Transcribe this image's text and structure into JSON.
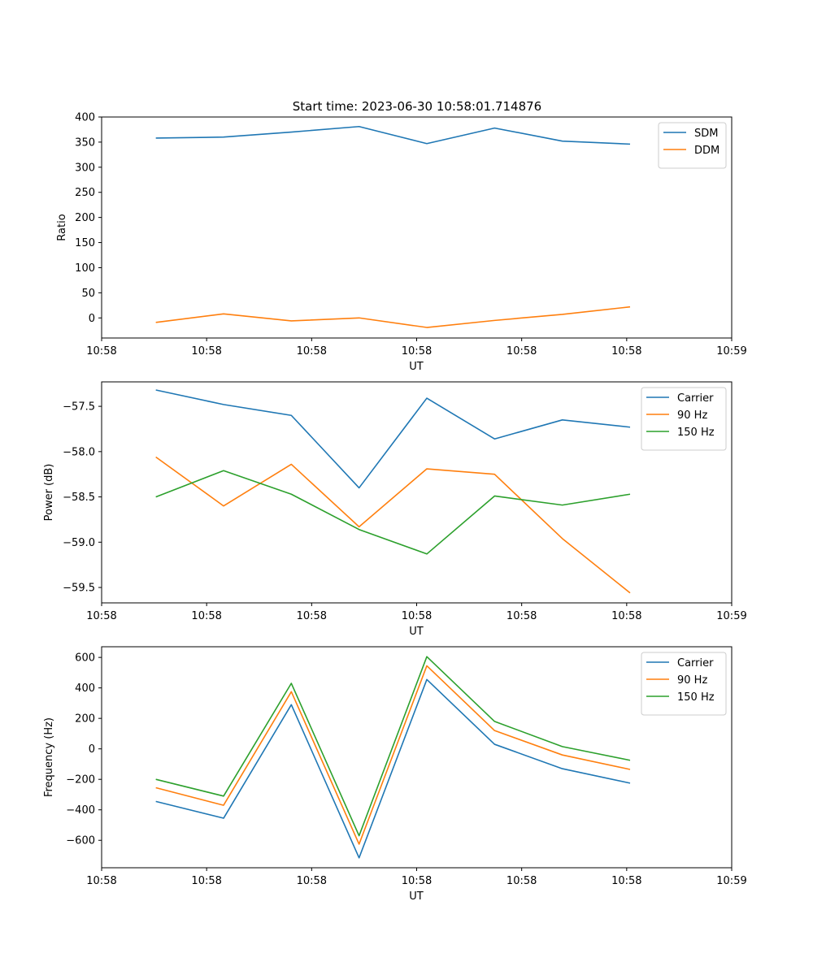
{
  "figure": {
    "title": "Start time: 2023-06-30 10:58:01.714876"
  },
  "chart_data": [
    {
      "type": "line",
      "title": "Start time: 2023-06-30 10:58:01.714876",
      "xlabel": "UT",
      "ylabel": "Ratio",
      "xlim": [
        0,
        9.3
      ],
      "x_ticks": [
        0,
        1.55,
        3.1,
        4.65,
        6.2,
        7.75,
        9.3
      ],
      "x_tick_labels": [
        "10:58",
        "10:58",
        "10:58",
        "10:58",
        "10:58",
        "10:58",
        "10:59"
      ],
      "ylim": [
        -40,
        400
      ],
      "y_ticks": [
        0,
        50,
        100,
        150,
        200,
        250,
        300,
        350,
        400
      ],
      "y_tick_labels": [
        "0",
        "50",
        "100",
        "150",
        "200",
        "250",
        "300",
        "350",
        "400"
      ],
      "x": [
        0.8,
        1.8,
        2.8,
        3.8,
        4.8,
        5.8,
        6.8,
        7.8
      ],
      "series": [
        {
          "name": "SDM",
          "color": "#1f77b4",
          "values": [
            358,
            360,
            370,
            381,
            347,
            378,
            352,
            346
          ]
        },
        {
          "name": "DDM",
          "color": "#ff7f0e",
          "values": [
            -9,
            8,
            -6,
            0,
            -19,
            -5,
            7,
            22
          ]
        }
      ],
      "legend": "top-right",
      "grid": false
    },
    {
      "type": "line",
      "title": "",
      "xlabel": "UT",
      "ylabel": "Power (dB)",
      "xlim": [
        0,
        9.3
      ],
      "x_ticks": [
        0,
        1.55,
        3.1,
        4.65,
        6.2,
        7.75,
        9.3
      ],
      "x_tick_labels": [
        "10:58",
        "10:58",
        "10:58",
        "10:58",
        "10:58",
        "10:58",
        "10:59"
      ],
      "ylim": [
        -59.67,
        -57.23
      ],
      "y_ticks": [
        -59.5,
        -59.0,
        -58.5,
        -58.0,
        -57.5
      ],
      "y_tick_labels": [
        "−59.5",
        "−59.0",
        "−58.5",
        "−58.0",
        "−57.5"
      ],
      "x": [
        0.8,
        1.8,
        2.8,
        3.8,
        4.8,
        5.8,
        6.8,
        7.8
      ],
      "series": [
        {
          "name": "Carrier",
          "color": "#1f77b4",
          "values": [
            -57.32,
            -57.48,
            -57.6,
            -58.4,
            -57.41,
            -57.86,
            -57.65,
            -57.73
          ]
        },
        {
          "name": "90 Hz",
          "color": "#ff7f0e",
          "values": [
            -58.06,
            -58.6,
            -58.14,
            -58.83,
            -58.19,
            -58.25,
            -58.96,
            -59.56
          ]
        },
        {
          "name": "150 Hz",
          "color": "#2ca02c",
          "values": [
            -58.5,
            -58.21,
            -58.47,
            -58.86,
            -59.13,
            -58.49,
            -58.59,
            -58.47
          ]
        }
      ],
      "legend": "top-right",
      "grid": false
    },
    {
      "type": "line",
      "title": "",
      "xlabel": "UT",
      "ylabel": "Frequency (Hz)",
      "xlim": [
        0,
        9.3
      ],
      "x_ticks": [
        0,
        1.55,
        3.1,
        4.65,
        6.2,
        7.75,
        9.3
      ],
      "x_tick_labels": [
        "10:58",
        "10:58",
        "10:58",
        "10:58",
        "10:58",
        "10:58",
        "10:59"
      ],
      "ylim": [
        -780,
        670
      ],
      "y_ticks": [
        -600,
        -400,
        -200,
        0,
        200,
        400,
        600
      ],
      "y_tick_labels": [
        "−600",
        "−400",
        "−200",
        "0",
        "200",
        "400",
        "600"
      ],
      "x": [
        0.8,
        1.8,
        2.8,
        3.8,
        4.8,
        5.8,
        6.8,
        7.8
      ],
      "series": [
        {
          "name": "Carrier",
          "color": "#1f77b4",
          "values": [
            -345,
            -455,
            290,
            -715,
            455,
            30,
            -130,
            -225
          ]
        },
        {
          "name": "90 Hz",
          "color": "#ff7f0e",
          "values": [
            -255,
            -370,
            375,
            -625,
            545,
            120,
            -40,
            -135
          ]
        },
        {
          "name": "150 Hz",
          "color": "#2ca02c",
          "values": [
            -200,
            -310,
            430,
            -570,
            605,
            180,
            15,
            -75
          ]
        }
      ],
      "legend": "top-right",
      "grid": false
    }
  ]
}
